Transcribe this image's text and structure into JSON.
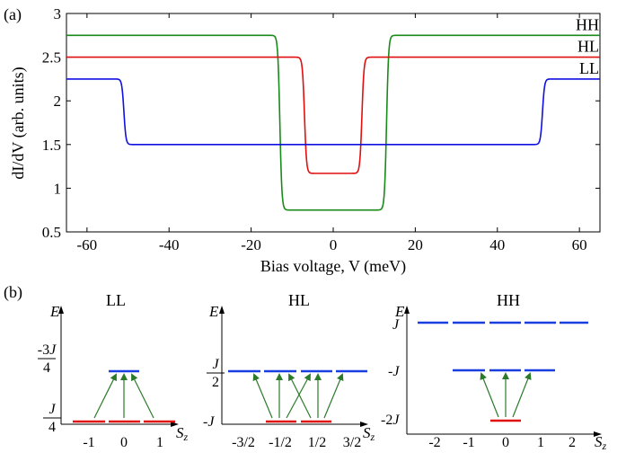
{
  "panels": {
    "a": {
      "label": "(a)"
    },
    "b": {
      "label": "(b)"
    }
  },
  "chart_data": {
    "type": "line",
    "xlabel": "Bias voltage, V (meV)",
    "ylabel": "dI/dV (arb. units)",
    "xlim": [
      -65,
      65
    ],
    "ylim": [
      0.5,
      3
    ],
    "xticks": [
      "-60",
      "-40",
      "-20",
      "0",
      "20",
      "40",
      "60"
    ],
    "yticks": [
      "0.5",
      "1",
      "1.5",
      "2",
      "2.5",
      "3"
    ],
    "grid": false,
    "series": [
      {
        "name": "HH",
        "color": "#1a8a1a",
        "outer": 2.75,
        "inner": 0.75,
        "step": 13.0
      },
      {
        "name": "HL",
        "color": "#e01010",
        "outer": 2.5,
        "inner": 1.17,
        "step": 7.0
      },
      {
        "name": "LL",
        "color": "#1010e0",
        "outer": 2.25,
        "inner": 1.5,
        "step": 51.0
      }
    ]
  },
  "diagrams": {
    "ll": {
      "title": "LL",
      "energy_label": "E",
      "sz_label": "S",
      "sz_sub": "z",
      "levels": [
        "-3J/4",
        "J/4"
      ],
      "sz_ticks": [
        "-1",
        "0",
        "1"
      ]
    },
    "hl": {
      "title": "HL",
      "energy_label": "E",
      "sz_label": "S",
      "sz_sub": "z",
      "levels": [
        "J/2",
        "-J"
      ],
      "sz_ticks": [
        "-3/2",
        "-1/2",
        "1/2",
        "3/2"
      ]
    },
    "hh": {
      "title": "HH",
      "energy_label": "E",
      "sz_label": "S",
      "sz_sub": "z",
      "levels": [
        "J",
        "-J",
        "-2J"
      ],
      "sz_ticks": [
        "-2",
        "-1",
        "0",
        "1",
        "2"
      ]
    }
  },
  "colors": {
    "ground": "#e01010",
    "excited": "#1a3fe0",
    "arrow": "#2a7a2a"
  }
}
